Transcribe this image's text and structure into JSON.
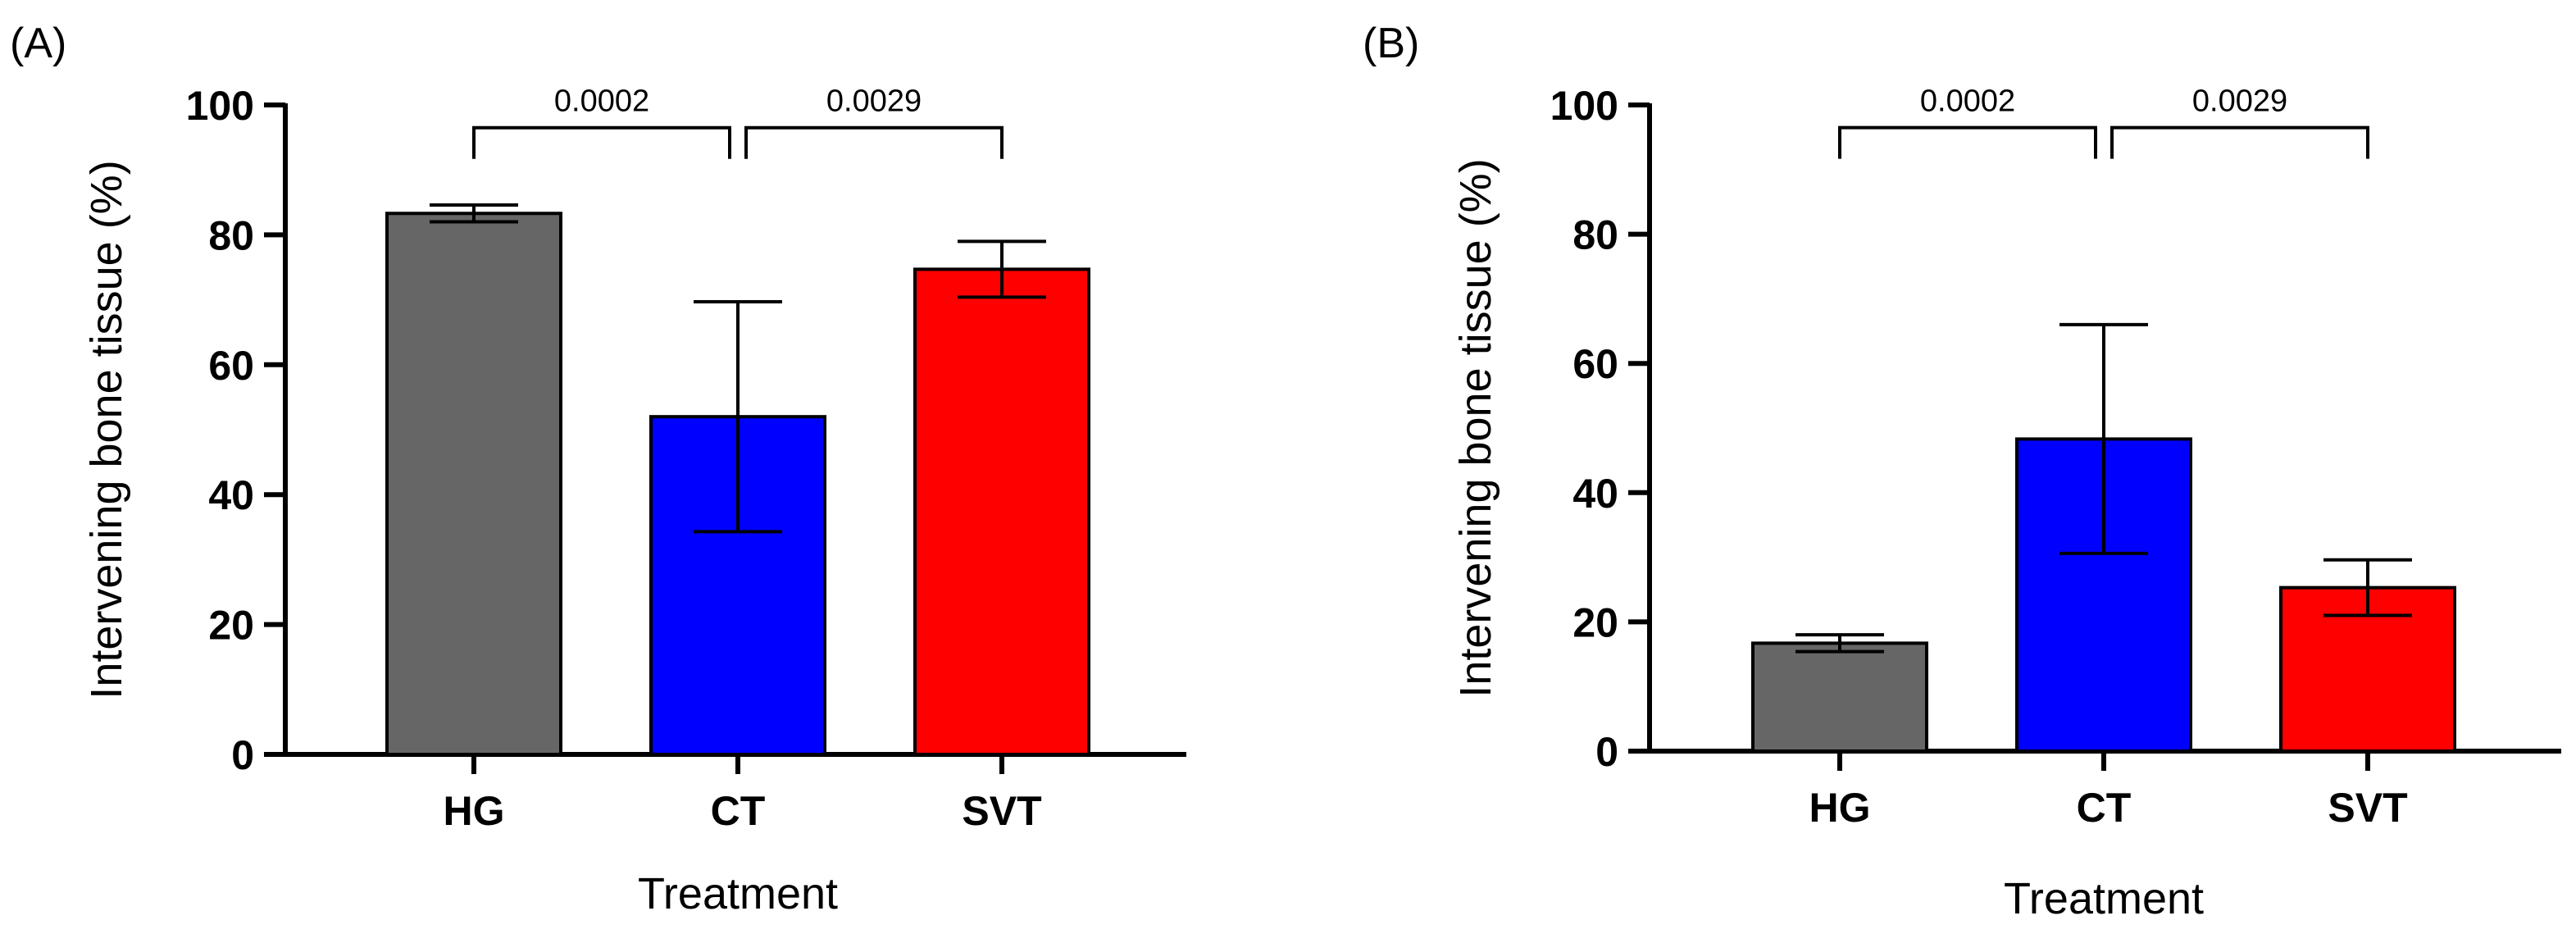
{
  "chart_data": [
    {
      "panel_label": "(A)",
      "type": "bar",
      "categories": [
        "HG",
        "CT",
        "SVT"
      ],
      "values": [
        83.3,
        52.0,
        74.7
      ],
      "errors": [
        1.3,
        17.7,
        4.3
      ],
      "colors": [
        "#666666",
        "#0000ff",
        "#ff0000"
      ],
      "xlabel": "Treatment",
      "ylabel": "Intervening bone tissue (%)",
      "ylim": [
        0,
        100
      ],
      "yticks": [
        "0",
        "20",
        "40",
        "60",
        "80",
        "100"
      ],
      "comparisons": [
        {
          "from": 0,
          "to": 1,
          "label": "0.0002",
          "y": 96.5
        },
        {
          "from": 1,
          "to": 2,
          "label": "0.0029",
          "y": 96.5
        }
      ]
    },
    {
      "panel_label": "(B)",
      "type": "bar",
      "categories": [
        "HG",
        "CT",
        "SVT"
      ],
      "values": [
        16.7,
        48.3,
        25.3
      ],
      "errors": [
        1.3,
        17.7,
        4.3
      ],
      "colors": [
        "#666666",
        "#0000ff",
        "#ff0000"
      ],
      "xlabel": "Treatment",
      "ylabel": "Intervening bone tissue (%)",
      "ylim": [
        0,
        100
      ],
      "yticks": [
        "0",
        "20",
        "40",
        "60",
        "80",
        "100"
      ],
      "comparisons": [
        {
          "from": 0,
          "to": 1,
          "label": "0.0002",
          "y": 96.5
        },
        {
          "from": 1,
          "to": 2,
          "label": "0.0029",
          "y": 96.5
        }
      ]
    }
  ]
}
